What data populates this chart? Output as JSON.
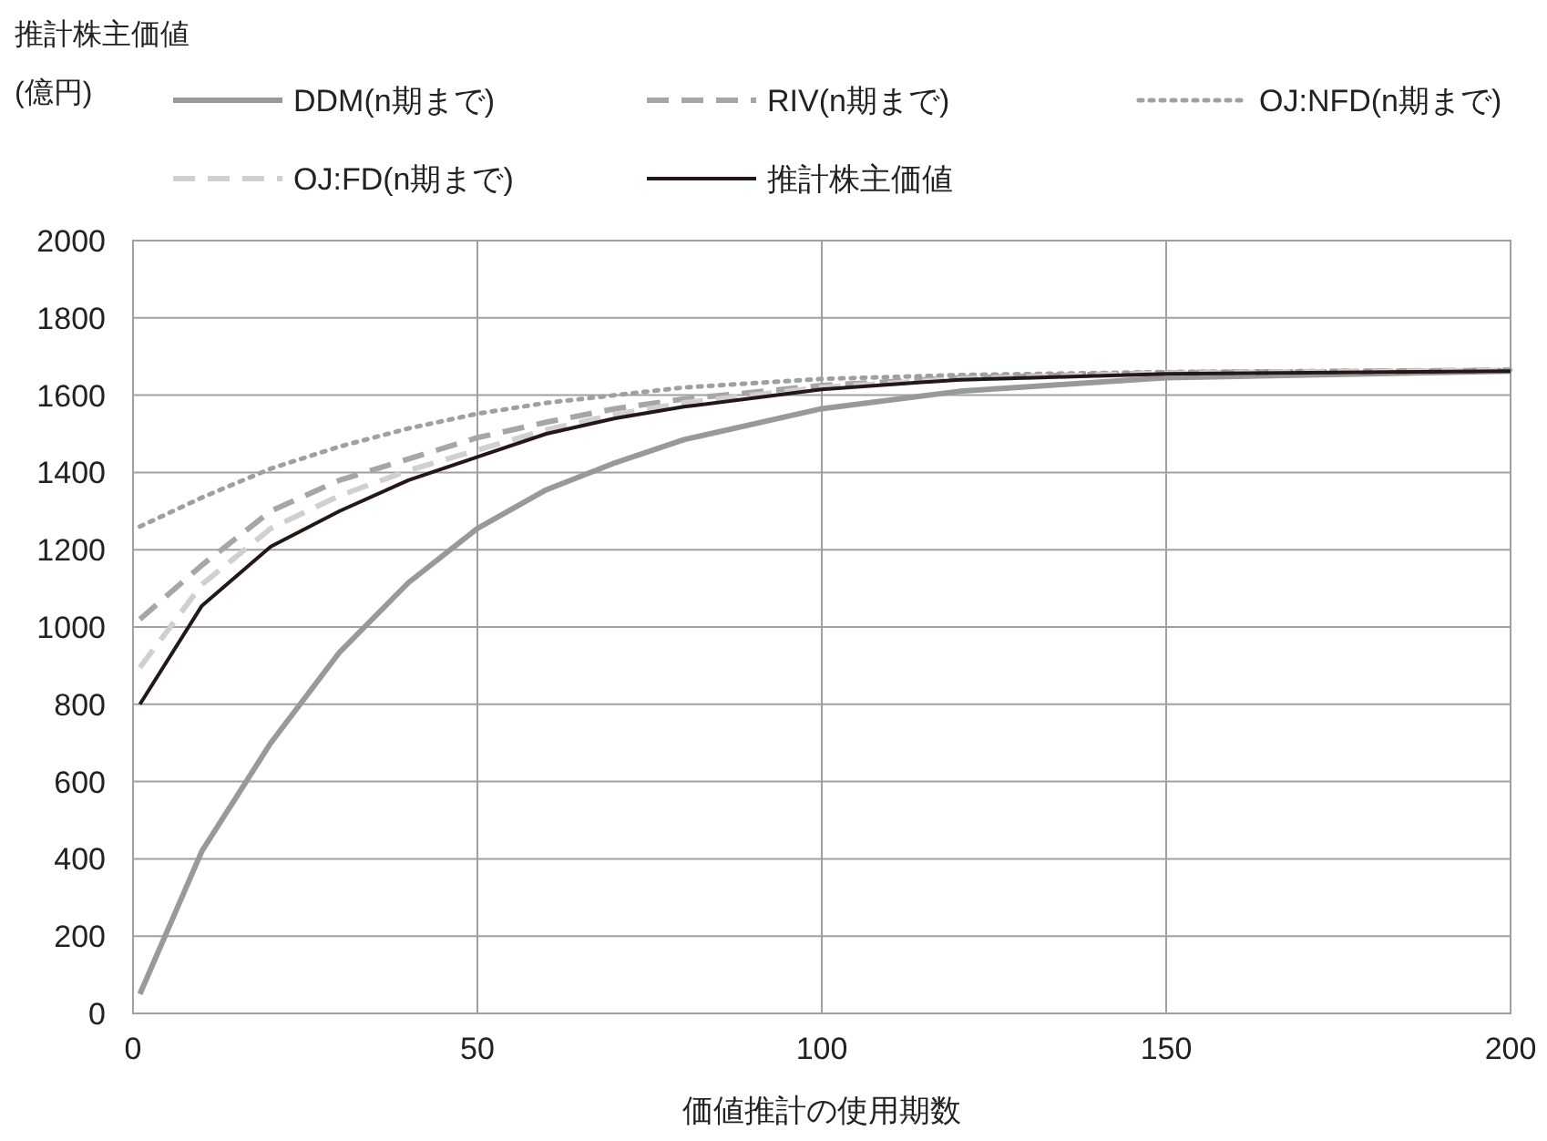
{
  "chart_data": {
    "type": "line",
    "xlabel": "価値推計の使用期数",
    "annotations": [
      "推計株主価値",
      "(億円)"
    ],
    "x": [
      1,
      10,
      20,
      30,
      40,
      50,
      60,
      70,
      80,
      100,
      120,
      150,
      200
    ],
    "series": [
      {
        "name": "DDM(n期まで)",
        "color": "#999999",
        "line_style": "solid",
        "values": [
          50,
          420,
          700,
          935,
          1115,
          1255,
          1355,
          1425,
          1485,
          1565,
          1610,
          1645,
          1662
        ]
      },
      {
        "name": "RIV(n期まで)",
        "color": "#a6a6a6",
        "line_style": "dashed",
        "values": [
          1020,
          1160,
          1300,
          1380,
          1435,
          1490,
          1530,
          1565,
          1590,
          1625,
          1645,
          1658,
          1665
        ]
      },
      {
        "name": "OJ:NFD(n期まで)",
        "color": "#a0a0a0",
        "line_style": "dotted",
        "values": [
          1260,
          1335,
          1410,
          1467,
          1514,
          1552,
          1580,
          1600,
          1620,
          1642,
          1652,
          1660,
          1665
        ]
      },
      {
        "name": "OJ:FD(n期まで)",
        "color": "#d0d0d0",
        "line_style": "dashed",
        "values": [
          895,
          1110,
          1255,
          1340,
          1405,
          1458,
          1510,
          1550,
          1580,
          1620,
          1642,
          1657,
          1664
        ]
      },
      {
        "name": "推計株主価値",
        "color": "#231815",
        "line_style": "solid",
        "values": [
          800,
          1055,
          1208,
          1300,
          1380,
          1440,
          1500,
          1540,
          1570,
          1615,
          1640,
          1655,
          1662
        ]
      }
    ],
    "xlim": [
      0,
      200
    ],
    "xticks": [
      0,
      50,
      100,
      150,
      200
    ],
    "ylim": [
      0,
      2000
    ],
    "yticks": [
      0,
      200,
      400,
      600,
      800,
      1000,
      1200,
      1400,
      1600,
      1800,
      2000
    ],
    "grid": true,
    "legend": "top",
    "marker": "none"
  }
}
